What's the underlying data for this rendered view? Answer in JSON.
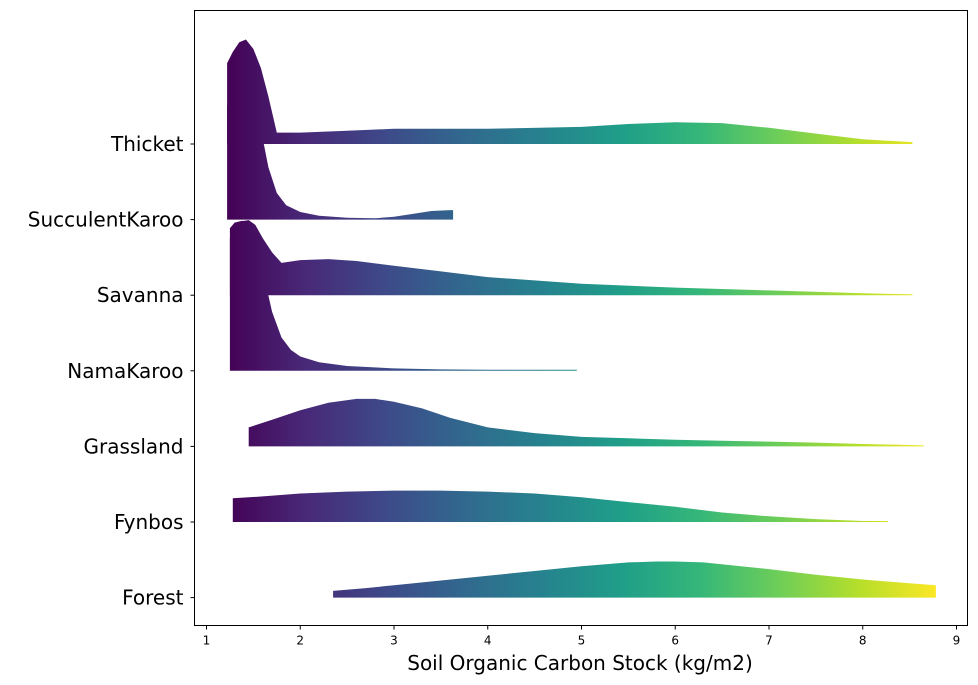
{
  "chart_data": {
    "type": "area",
    "subtype": "ridgeline",
    "xlabel": "Soil Organic Carbon Stock (kg/m2)",
    "ylabel": "",
    "xlim": [
      0.85,
      9.1
    ],
    "xticks": [
      1,
      2,
      3,
      4,
      5,
      6,
      7,
      8,
      9
    ],
    "colormap": "viridis",
    "colormap_range": [
      1.2,
      8.8
    ],
    "colormap_stops": [
      "#440154",
      "#482878",
      "#3e4989",
      "#31688e",
      "#26828e",
      "#1f9e89",
      "#35b779",
      "#6ece58",
      "#b5de2b",
      "#fde725"
    ],
    "grid": false,
    "categories": [
      "Thicket",
      "SucculentKaroo",
      "Savanna",
      "NamaKaroo",
      "Grassland",
      "Fynbos",
      "Forest"
    ],
    "series": [
      {
        "name": "Thicket",
        "x": [
          1.22,
          1.28,
          1.35,
          1.42,
          1.5,
          1.58,
          1.66,
          1.75,
          2.0,
          2.5,
          3.0,
          4.0,
          5.0,
          5.5,
          6.0,
          6.5,
          7.0,
          7.5,
          8.0,
          8.53
        ],
        "y": [
          0.85,
          0.97,
          1.07,
          1.1,
          1.0,
          0.8,
          0.5,
          0.12,
          0.12,
          0.14,
          0.16,
          0.16,
          0.18,
          0.21,
          0.23,
          0.22,
          0.17,
          0.11,
          0.05,
          0.02
        ]
      },
      {
        "name": "SucculentKaroo",
        "x": [
          1.22,
          1.28,
          1.35,
          1.42,
          1.5,
          1.58,
          1.66,
          1.75,
          1.85,
          2.0,
          2.2,
          2.5,
          2.8,
          3.0,
          3.2,
          3.4,
          3.6,
          3.63
        ],
        "y": [
          1.2,
          1.36,
          1.46,
          1.48,
          1.3,
          0.95,
          0.55,
          0.28,
          0.15,
          0.08,
          0.04,
          0.02,
          0.015,
          0.03,
          0.06,
          0.09,
          0.1,
          0.1
        ]
      },
      {
        "name": "Savanna",
        "x": [
          1.25,
          1.3,
          1.38,
          1.45,
          1.52,
          1.6,
          1.7,
          1.8,
          2.0,
          2.3,
          2.6,
          3.0,
          3.5,
          4.0,
          5.0,
          6.0,
          7.0,
          8.0,
          8.53
        ],
        "y": [
          0.6,
          0.71,
          0.78,
          0.79,
          0.74,
          0.6,
          0.45,
          0.34,
          0.37,
          0.38,
          0.36,
          0.31,
          0.25,
          0.19,
          0.12,
          0.08,
          0.05,
          0.02,
          0.01
        ]
      },
      {
        "name": "NamaKaroo",
        "x": [
          1.25,
          1.3,
          1.38,
          1.45,
          1.52,
          1.6,
          1.7,
          1.8,
          1.9,
          2.0,
          2.2,
          2.5,
          3.0,
          3.5,
          4.0,
          4.5,
          4.95
        ],
        "y": [
          1.5,
          1.56,
          1.58,
          1.55,
          1.38,
          1.05,
          0.62,
          0.35,
          0.22,
          0.15,
          0.09,
          0.05,
          0.025,
          0.015,
          0.01,
          0.01,
          0.01
        ]
      },
      {
        "name": "Grassland",
        "x": [
          1.45,
          1.7,
          2.0,
          2.3,
          2.6,
          2.8,
          3.0,
          3.3,
          3.6,
          4.0,
          4.5,
          5.0,
          5.5,
          6.0,
          6.5,
          7.0,
          7.5,
          8.0,
          8.5,
          8.65
        ],
        "y": [
          0.2,
          0.28,
          0.38,
          0.46,
          0.5,
          0.5,
          0.47,
          0.4,
          0.3,
          0.2,
          0.14,
          0.1,
          0.085,
          0.07,
          0.06,
          0.05,
          0.04,
          0.025,
          0.015,
          0.01
        ]
      },
      {
        "name": "Fynbos",
        "x": [
          1.28,
          1.6,
          2.0,
          2.5,
          3.0,
          3.5,
          4.0,
          4.5,
          5.0,
          5.5,
          6.0,
          6.5,
          7.0,
          7.5,
          8.0,
          8.27
        ],
        "y": [
          0.25,
          0.27,
          0.3,
          0.32,
          0.33,
          0.33,
          0.32,
          0.3,
          0.26,
          0.21,
          0.16,
          0.1,
          0.06,
          0.03,
          0.01,
          0.01
        ]
      },
      {
        "name": "Forest",
        "x": [
          2.35,
          2.7,
          3.0,
          3.5,
          4.0,
          4.5,
          5.0,
          5.5,
          5.8,
          6.0,
          6.3,
          6.7,
          7.0,
          7.5,
          8.0,
          8.5,
          8.78
        ],
        "y": [
          0.07,
          0.1,
          0.13,
          0.18,
          0.23,
          0.28,
          0.33,
          0.37,
          0.38,
          0.38,
          0.37,
          0.33,
          0.3,
          0.24,
          0.19,
          0.15,
          0.13
        ]
      }
    ]
  }
}
